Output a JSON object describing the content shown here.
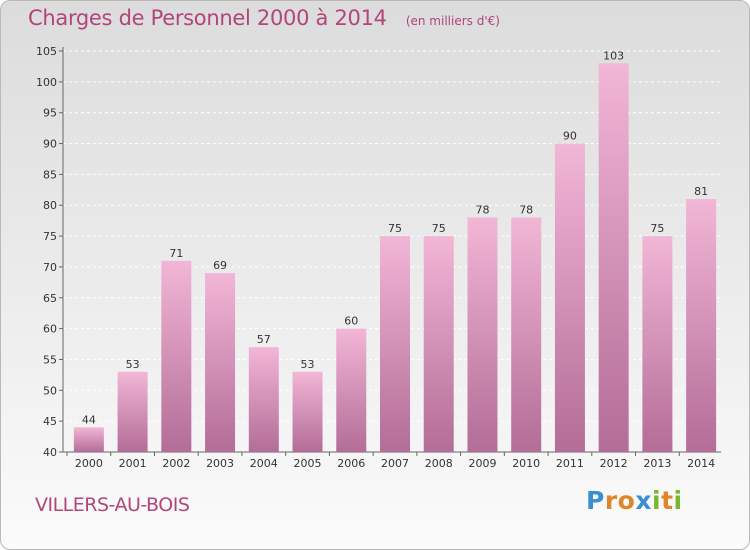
{
  "title": "Charges de Personnel 2000 à 2014",
  "subtitle": "(en milliers d'€)",
  "place": "VILLERS-AU-BOIS",
  "logo": {
    "letters": [
      "P",
      "r",
      "o",
      "x",
      "i",
      "t",
      "i"
    ],
    "colors": [
      "#3a8fd0",
      "#e0862a",
      "#e0862a",
      "#3a8fd0",
      "#77b82e",
      "#e0862a",
      "#77b82e"
    ]
  },
  "colors": {
    "bar_light": "#f2b6d6",
    "bar_dark": "#b36d97",
    "text": "#b0467b",
    "grid": "#ffffff"
  },
  "chart_data": {
    "type": "bar",
    "categories": [
      "2000",
      "2001",
      "2002",
      "2003",
      "2004",
      "2005",
      "2006",
      "2007",
      "2008",
      "2009",
      "2010",
      "2011",
      "2012",
      "2013",
      "2014"
    ],
    "values": [
      44,
      53,
      71,
      69,
      57,
      53,
      60,
      75,
      75,
      78,
      78,
      90,
      103,
      75,
      81
    ],
    "ylim": [
      40,
      105
    ],
    "yticks": [
      40,
      45,
      50,
      55,
      60,
      65,
      70,
      75,
      80,
      85,
      90,
      95,
      100,
      105
    ],
    "grid": true,
    "xlabel": "",
    "ylabel": ""
  }
}
